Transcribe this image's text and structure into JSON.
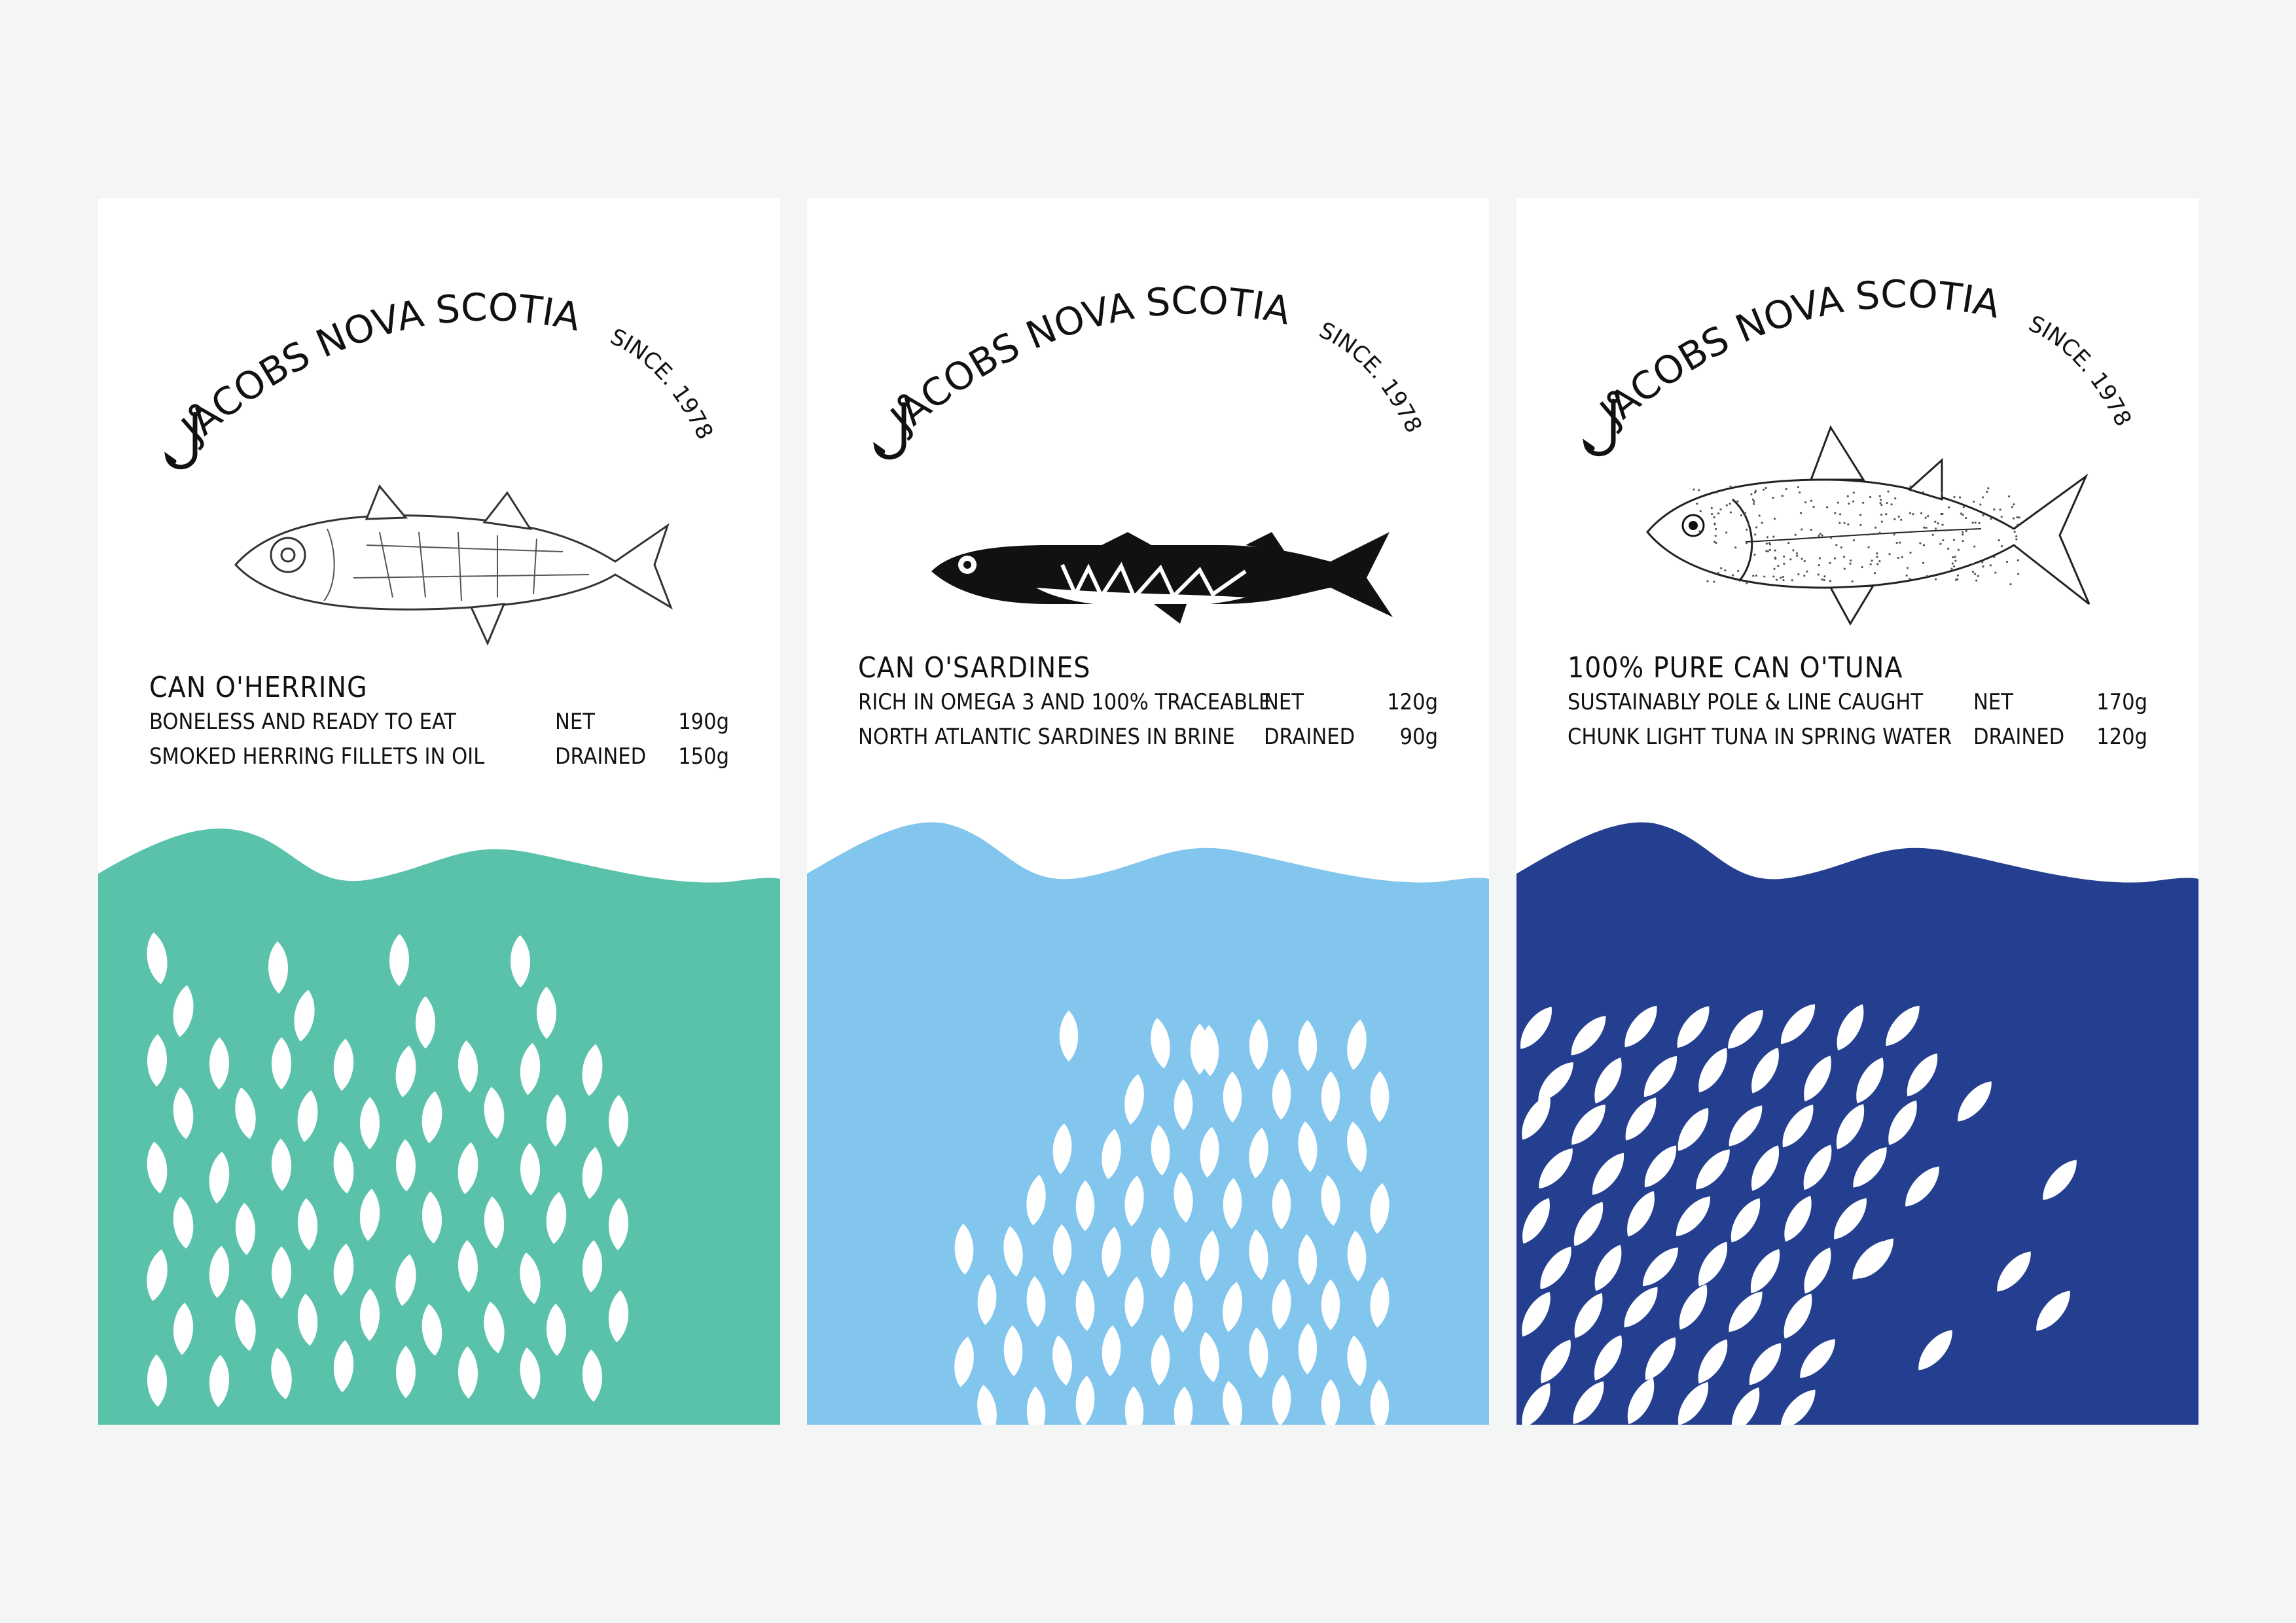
{
  "brand": {
    "name": "JACOBS NOVA SCOTIA",
    "since": "SINCE. 1978"
  },
  "labels": [
    {
      "fish_icon": "herring-illustration-icon",
      "product": "CAN  O'HERRING",
      "line1": "BONELESS AND READY TO EAT",
      "line2": "SMOKED HERRING FILLETS IN OIL",
      "net_label": "NET",
      "net_value": "190g",
      "drained_label": "DRAINED",
      "drained_value": "150g",
      "wave_color": "#5ac2ab"
    },
    {
      "fish_icon": "sardine-illustration-icon",
      "product": "CAN  O'SARDINES",
      "line1": "RICH IN OMEGA 3 AND 100% TRACEABLE",
      "line2": "NORTH ATLANTIC SARDINES IN BRINE",
      "net_label": "NET",
      "net_value": "120g",
      "drained_label": "DRAINED",
      "drained_value": "90g",
      "wave_color": "#82c5ed"
    },
    {
      "fish_icon": "tuna-illustration-icon",
      "product": "100% PURE  CAN  O'TUNA",
      "line1": "SUSTAINABLY  POLE & LINE CAUGHT",
      "line2": "CHUNK  LIGHT TUNA  IN  SPRING  WATER",
      "net_label": "NET",
      "net_value": "170g",
      "drained_label": "DRAINED",
      "drained_value": "120g",
      "wave_color": "#243f8f"
    }
  ]
}
